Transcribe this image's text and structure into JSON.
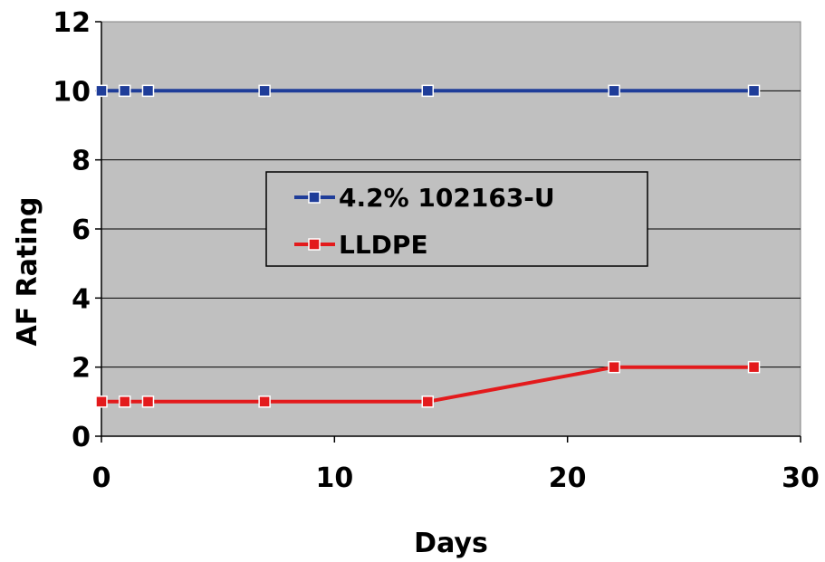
{
  "chart_data": {
    "type": "line",
    "title": "",
    "xlabel": "Days",
    "ylabel": "AF Rating",
    "xlim": [
      0,
      30
    ],
    "ylim": [
      0,
      12
    ],
    "xticks": [
      0,
      10,
      20,
      30
    ],
    "yticks": [
      0,
      2,
      4,
      6,
      8,
      10,
      12
    ],
    "grid": "horizontal",
    "legend_position": "center",
    "plot_background": "#c0c0c0",
    "series": [
      {
        "name": "4.2% 102163-U",
        "color": "#1f3d99",
        "marker": "square",
        "x": [
          0,
          1,
          2,
          7,
          14,
          22,
          28
        ],
        "y": [
          10,
          10,
          10,
          10,
          10,
          10,
          10
        ]
      },
      {
        "name": "LLDPE",
        "color": "#e31a1c",
        "marker": "square",
        "x": [
          0,
          1,
          2,
          7,
          14,
          22,
          28
        ],
        "y": [
          1,
          1,
          1,
          1,
          1,
          2,
          2
        ]
      }
    ]
  }
}
